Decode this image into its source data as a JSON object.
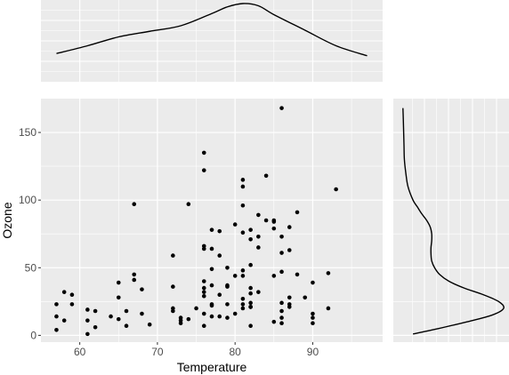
{
  "chart_data": {
    "type": "scatter",
    "title": "",
    "xlabel": "Temperature",
    "ylabel": "Ozone",
    "xlim": [
      55,
      99
    ],
    "ylim": [
      -5,
      175
    ],
    "x_ticks": [
      60,
      70,
      80,
      90
    ],
    "y_ticks": [
      0,
      50,
      100,
      150
    ],
    "grid": true,
    "panel_background": "#ebebeb",
    "grid_color": "#ffffff",
    "point_color": "#000000",
    "points": [
      [
        67,
        41
      ],
      [
        72,
        36
      ],
      [
        74,
        12
      ],
      [
        62,
        18
      ],
      [
        65,
        28
      ],
      [
        59,
        23
      ],
      [
        61,
        19
      ],
      [
        69,
        8
      ],
      [
        66,
        7
      ],
      [
        68,
        16
      ],
      [
        58,
        11
      ],
      [
        64,
        14
      ],
      [
        66,
        18
      ],
      [
        57,
        14
      ],
      [
        68,
        34
      ],
      [
        62,
        6
      ],
      [
        59,
        30
      ],
      [
        73,
        11
      ],
      [
        61,
        1
      ],
      [
        61,
        11
      ],
      [
        57,
        4
      ],
      [
        58,
        32
      ],
      [
        57,
        23
      ],
      [
        67,
        45
      ],
      [
        81,
        115
      ],
      [
        79,
        37
      ],
      [
        76,
        29
      ],
      [
        82,
        71
      ],
      [
        90,
        39
      ],
      [
        87,
        23
      ],
      [
        82,
        21
      ],
      [
        77,
        37
      ],
      [
        72,
        20
      ],
      [
        65,
        12
      ],
      [
        73,
        13
      ],
      [
        76,
        135
      ],
      [
        77,
        49
      ],
      [
        76,
        32
      ],
      [
        76,
        64
      ],
      [
        76,
        40
      ],
      [
        78,
        77
      ],
      [
        74,
        97
      ],
      [
        67,
        97
      ],
      [
        84,
        85
      ],
      [
        85,
        10
      ],
      [
        81,
        27
      ],
      [
        82,
        7
      ],
      [
        81,
        48
      ],
      [
        82,
        35
      ],
      [
        86,
        61
      ],
      [
        85,
        79
      ],
      [
        87,
        63
      ],
      [
        90,
        16
      ],
      [
        87,
        80
      ],
      [
        93,
        108
      ],
      [
        92,
        20
      ],
      [
        82,
        52
      ],
      [
        80,
        82
      ],
      [
        79,
        50
      ],
      [
        77,
        64
      ],
      [
        72,
        59
      ],
      [
        65,
        39
      ],
      [
        73,
        9
      ],
      [
        76,
        16
      ],
      [
        77,
        78
      ],
      [
        76,
        35
      ],
      [
        76,
        66
      ],
      [
        76,
        122
      ],
      [
        83,
        89
      ],
      [
        81,
        110
      ],
      [
        80,
        44
      ],
      [
        87,
        28
      ],
      [
        83,
        65
      ],
      [
        77,
        22
      ],
      [
        78,
        59
      ],
      [
        79,
        23
      ],
      [
        82,
        31
      ],
      [
        81,
        44
      ],
      [
        82,
        21
      ],
      [
        86,
        9
      ],
      [
        88,
        45
      ],
      [
        86,
        168
      ],
      [
        83,
        73
      ],
      [
        81,
        76
      ],
      [
        84,
        118
      ],
      [
        85,
        84
      ],
      [
        85,
        85
      ],
      [
        81,
        96
      ],
      [
        82,
        78
      ],
      [
        86,
        73
      ],
      [
        88,
        91
      ],
      [
        86,
        47
      ],
      [
        83,
        32
      ],
      [
        81,
        20
      ],
      [
        81,
        23
      ],
      [
        82,
        21
      ],
      [
        86,
        24
      ],
      [
        85,
        44
      ],
      [
        87,
        21
      ],
      [
        89,
        28
      ],
      [
        90,
        9
      ],
      [
        90,
        13
      ],
      [
        92,
        46
      ],
      [
        86,
        18
      ],
      [
        86,
        13
      ],
      [
        82,
        24
      ],
      [
        80,
        16
      ],
      [
        79,
        13
      ],
      [
        77,
        23
      ],
      [
        79,
        36
      ],
      [
        76,
        7
      ],
      [
        78,
        14
      ],
      [
        78,
        30
      ],
      [
        77,
        14
      ],
      [
        72,
        18
      ],
      [
        75,
        20
      ]
    ],
    "marginal_x": {
      "type": "density",
      "x": [
        57,
        61,
        65,
        69,
        73,
        77,
        79,
        81,
        83,
        85,
        89,
        93,
        97
      ],
      "density": [
        0.011,
        0.018,
        0.026,
        0.031,
        0.036,
        0.047,
        0.053,
        0.056,
        0.054,
        0.046,
        0.032,
        0.018,
        0.009
      ]
    },
    "marginal_y": {
      "type": "density",
      "y": [
        1,
        5,
        10,
        15,
        20,
        25,
        30,
        35,
        40,
        45,
        50,
        55,
        60,
        65,
        70,
        75,
        80,
        85,
        90,
        95,
        100,
        110,
        120,
        130,
        140,
        150,
        160,
        168
      ],
      "density": [
        0.0015,
        0.005,
        0.009,
        0.0125,
        0.0141,
        0.0134,
        0.0113,
        0.0086,
        0.0065,
        0.0052,
        0.0045,
        0.0041,
        0.004,
        0.004,
        0.0041,
        0.0041,
        0.0039,
        0.0034,
        0.0027,
        0.0021,
        0.0015,
        0.0008,
        0.0005,
        0.0003,
        0.00025,
        0.0002,
        0.00015,
        0.0001
      ]
    }
  }
}
